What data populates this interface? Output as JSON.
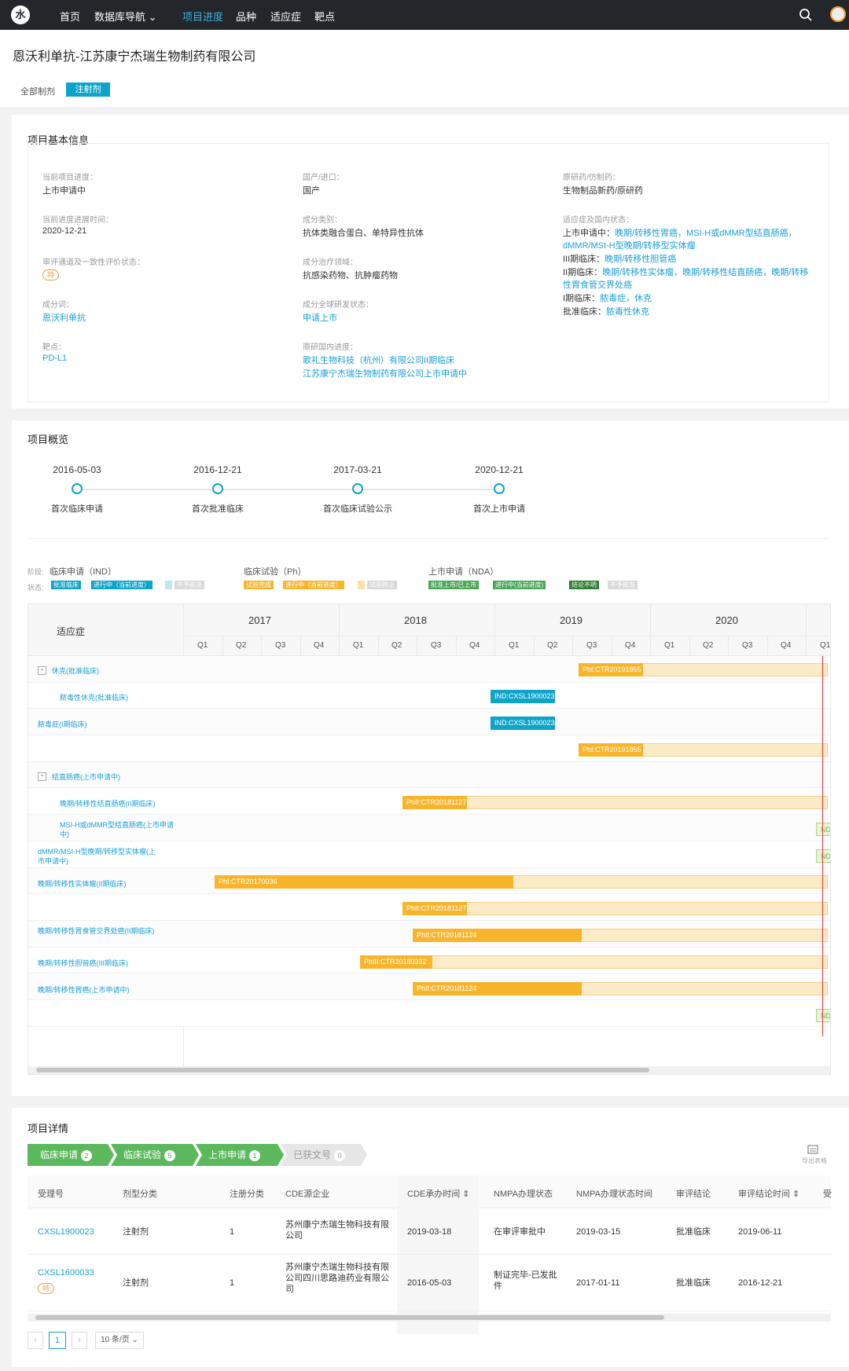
{
  "nav": {
    "logo": "水",
    "items": [
      "首页",
      "数据库导航 ⌄",
      "项目进度",
      "品种",
      "适应症",
      "靶点"
    ]
  },
  "page": {
    "title": "恩沃利单抗-江苏康宁杰瑞生物制药有限公司",
    "tab_all": "全部制剂",
    "tab_injection": "注射剂"
  },
  "basic_info": {
    "title": "项目基本信息",
    "fields": [
      {
        "label": "当前项目进度：",
        "value": "上市申请中"
      },
      {
        "label": "当前进度进展时间：",
        "value": "2020-12-21"
      },
      {
        "label": "审评通道及一致性评价状态：",
        "tag": "特"
      },
      {
        "label": "成分词：",
        "value": "恩沃利单抗"
      },
      {
        "label": "靶点：",
        "value": "PD-L1"
      },
      {
        "label": "国产/进口：",
        "value": "国产"
      },
      {
        "label": "成分类别：",
        "value": "抗体类融合蛋白、单特异性抗体"
      },
      {
        "label": "成分治疗领域：",
        "value": "抗感染药物、抗肿瘤药物"
      },
      {
        "label": "成分全球研发状态：",
        "value": "申请上市"
      },
      {
        "label": "原研国内进度：",
        "value": "歌礼生物科技（杭州）有限公司II期临床",
        "value2": "江苏康宁杰瑞生物制药有限公司上市申请中"
      },
      {
        "label": "原研药/仿制药：",
        "value": "生物制品新药/原研药"
      },
      {
        "label": "适应症及国内状态："
      }
    ],
    "indication_lines": [
      {
        "prefix": "上市申请中：",
        "links": "晚期/转移性胃癌，MSI-H或dMMR型结直肠癌，"
      },
      {
        "prefix": "",
        "links": "dMMR/MSI-H型晚期/转移型实体瘤"
      },
      {
        "prefix": "III期临床：",
        "links": "晚期/转移性胆管癌"
      },
      {
        "prefix": "II期临床：",
        "links": "晚期/转移性实体瘤，晚期/转移性结直肠癌，晚期/转移"
      },
      {
        "prefix": "",
        "links": "性胃食管交界处癌"
      },
      {
        "prefix": "I期临床：",
        "links": "脓毒症，休克"
      },
      {
        "prefix": "批准临床：",
        "links": "脓毒性休克"
      }
    ]
  },
  "overview": {
    "title": "项目概览",
    "milestones": [
      {
        "date": "2016-05-03",
        "name": "首次临床申请"
      },
      {
        "date": "2016-12-21",
        "name": "首次批准临床"
      },
      {
        "date": "2017-03-21",
        "name": "首次临床试验公示"
      },
      {
        "date": "2020-12-21",
        "name": "首次上市申请"
      }
    ],
    "legend": {
      "stage_label": "阶段:",
      "status_label": "状态:",
      "stages": [
        "临床申请（IND）",
        "临床试验（Ph）",
        "上市申请（NDA）"
      ],
      "ind_statuses": [
        "批准临床",
        "进行中（当前进度）",
        "",
        "不予批准"
      ],
      "ph_statuses": [
        "试验完成",
        "进行中（当前进度）",
        "",
        "试验终止"
      ],
      "nda_statuses": [
        "批准上市/已上市",
        "进行中(当前进度)",
        "结论不明",
        "不予批准"
      ],
      "colors": {
        "blue": "#0ea4c9",
        "orange": "#f8b52c",
        "green": "#49a658",
        "darkgreen": "#2e7d32",
        "gray": "#cfcfcf"
      }
    },
    "gantt": {
      "col_header": "适应症",
      "years": [
        "2017",
        "2018",
        "2019",
        "2020"
      ],
      "quarters": [
        "Q1",
        "Q2",
        "Q3",
        "Q4",
        "Q1",
        "Q2",
        "Q3",
        "Q4",
        "Q1",
        "Q2",
        "Q3",
        "Q4",
        "Q1",
        "Q2",
        "Q3",
        "Q4",
        "Q1"
      ],
      "rows": [
        {
          "label": "休克(批准临床)",
          "collapsible": true,
          "bar": "PhI:CTR20191855"
        },
        {
          "label": "脓毒性休克(批准临床)",
          "bar": "IND:CXSL1900023"
        },
        {
          "label": "脓毒症(I期临床)",
          "bar": "IND:CXSL1900023"
        },
        {
          "label": "",
          "bar": "PhI:CTR20191855"
        },
        {
          "label": "结直肠癌(上市申请中)",
          "collapsible": true,
          "bar": ""
        },
        {
          "label": "晚期/转移性结直肠癌(II期临床)",
          "bar": "PhII:CTR20181127"
        },
        {
          "label": "MSI-H或dMMR型结直肠癌(上市申请中)",
          "bar": "NDA:C"
        },
        {
          "label": "dMMR/MSI-H型晚期/转移型实体瘤(上市申请中)",
          "bar": "NDA:C"
        },
        {
          "label": "晚期/转移性实体瘤(II期临床)",
          "bar": "PhI:CTR20170036"
        },
        {
          "label": "",
          "bar": "PhII:CTR20181127"
        },
        {
          "label": "晚期/转移性胃食管交界处癌(II期临床)",
          "bar": "PhII:CTR20181124"
        },
        {
          "label": "晚期/转移性胆管癌(III期临床)",
          "bar": "PhIII:CTR20180332"
        },
        {
          "label": "晚期/转移性胃癌(上市申请中)",
          "bar": "PhII:CTR20181124"
        },
        {
          "label": "",
          "bar": "NDA:C"
        }
      ]
    }
  },
  "details": {
    "title": "项目详情",
    "steps": [
      {
        "label": "临床申请",
        "count": "2"
      },
      {
        "label": "临床试验",
        "count": "5"
      },
      {
        "label": "上市申请",
        "count": "1"
      },
      {
        "label": "已获文号",
        "count": "0"
      }
    ],
    "export_label": "导出表格",
    "columns": [
      "受理号",
      "剂型分类",
      "注册分类",
      "CDE源企业",
      "CDE承办时间 ⇕",
      "NMPA办理状态",
      "NMPA办理状态时间",
      "审评结论",
      "审评结论时间 ⇕",
      "受"
    ],
    "rows": [
      {
        "id": "CXSL1900023",
        "tag": "",
        "form": "注射剂",
        "reg": "1",
        "company": "苏州康宁杰瑞生物科技有限公司",
        "cde_time": "2019-03-18",
        "nmpa_status": "在审评审批中",
        "nmpa_time": "2019-03-15",
        "conclusion": "批准临床",
        "conc_time": "2019-06-11"
      },
      {
        "id": "CXSL1600033",
        "tag": "特",
        "form": "注射剂",
        "reg": "1",
        "company": "苏州康宁杰瑞生物科技有限公司四川思路迪药业有限公司",
        "cde_time": "2016-05-03",
        "nmpa_status": "制证完毕-已发批件",
        "nmpa_time": "2017-01-11",
        "conclusion": "批准临床",
        "conc_time": "2016-12-21"
      }
    ],
    "pagination": {
      "prev": "‹",
      "page": "1",
      "next": "›",
      "page_size": "10 条/页 ⌄"
    }
  }
}
